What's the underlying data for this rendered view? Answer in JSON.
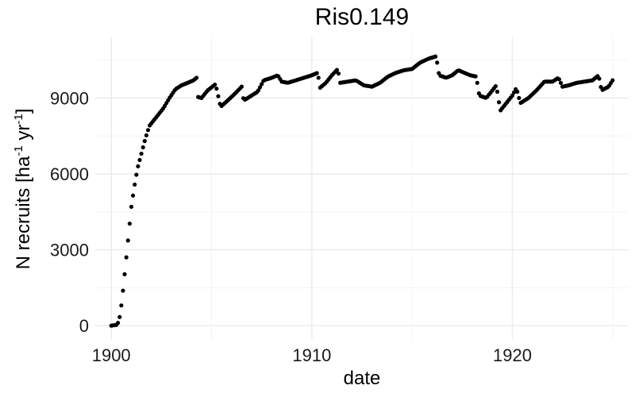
{
  "chart_data": {
    "type": "scatter",
    "title": "Ris0.149",
    "xlabel": "date",
    "ylabel": {
      "text": "N recruits [ha",
      "sup1": "-1",
      "mid": " yr",
      "sup2": "-1",
      "end": "]"
    },
    "xlim": [
      1899.2,
      1925.8
    ],
    "ylim": [
      -560,
      11400
    ],
    "x_ticks": [
      1900,
      1910,
      1920
    ],
    "x_tick_labels": [
      "1900",
      "1910",
      "1920"
    ],
    "y_ticks": [
      0,
      3000,
      6000,
      9000
    ],
    "y_tick_labels": [
      "0",
      "3000",
      "6000",
      "9000"
    ],
    "grid": true,
    "legend": "none",
    "marker_color": "#000000",
    "anchors": [
      [
        1900.0,
        0
      ],
      [
        1900.15,
        20
      ],
      [
        1900.3,
        40
      ],
      [
        1900.4,
        250
      ],
      [
        1900.5,
        800
      ],
      [
        1900.6,
        1500
      ],
      [
        1900.7,
        2300
      ],
      [
        1900.8,
        3100
      ],
      [
        1900.9,
        3900
      ],
      [
        1901.0,
        4700
      ],
      [
        1901.15,
        5500
      ],
      [
        1901.3,
        6200
      ],
      [
        1901.5,
        6800
      ],
      [
        1901.7,
        7400
      ],
      [
        1901.9,
        7900
      ],
      [
        1902.1,
        8100
      ],
      [
        1902.3,
        8300
      ],
      [
        1902.6,
        8600
      ],
      [
        1902.9,
        9000
      ],
      [
        1903.2,
        9350
      ],
      [
        1903.5,
        9500
      ],
      [
        1903.8,
        9600
      ],
      [
        1904.1,
        9700
      ],
      [
        1904.25,
        9800
      ],
      [
        1904.3,
        9050
      ],
      [
        1904.5,
        9000
      ],
      [
        1904.8,
        9300
      ],
      [
        1905.2,
        9550
      ],
      [
        1905.45,
        8650
      ],
      [
        1905.8,
        8900
      ],
      [
        1906.2,
        9200
      ],
      [
        1906.5,
        9450
      ],
      [
        1906.6,
        8900
      ],
      [
        1906.9,
        9050
      ],
      [
        1907.3,
        9250
      ],
      [
        1907.6,
        9700
      ],
      [
        1908.0,
        9800
      ],
      [
        1908.3,
        9900
      ],
      [
        1908.5,
        9650
      ],
      [
        1908.8,
        9600
      ],
      [
        1909.2,
        9700
      ],
      [
        1909.6,
        9800
      ],
      [
        1910.0,
        9900
      ],
      [
        1910.3,
        10000
      ],
      [
        1910.4,
        9400
      ],
      [
        1910.7,
        9600
      ],
      [
        1911.0,
        9900
      ],
      [
        1911.3,
        10150
      ],
      [
        1911.4,
        9600
      ],
      [
        1911.8,
        9650
      ],
      [
        1912.2,
        9700
      ],
      [
        1912.6,
        9500
      ],
      [
        1913.0,
        9450
      ],
      [
        1913.4,
        9600
      ],
      [
        1913.8,
        9850
      ],
      [
        1914.2,
        10000
      ],
      [
        1914.6,
        10100
      ],
      [
        1915.0,
        10150
      ],
      [
        1915.4,
        10400
      ],
      [
        1915.8,
        10550
      ],
      [
        1916.2,
        10650
      ],
      [
        1916.35,
        9900
      ],
      [
        1916.7,
        9800
      ],
      [
        1917.0,
        9900
      ],
      [
        1917.3,
        10100
      ],
      [
        1917.6,
        10000
      ],
      [
        1917.9,
        9900
      ],
      [
        1918.2,
        9850
      ],
      [
        1918.35,
        9100
      ],
      [
        1918.7,
        9000
      ],
      [
        1919.0,
        9300
      ],
      [
        1919.2,
        9500
      ],
      [
        1919.4,
        8500
      ],
      [
        1919.7,
        8800
      ],
      [
        1920.0,
        9100
      ],
      [
        1920.2,
        9400
      ],
      [
        1920.4,
        8800
      ],
      [
        1920.8,
        9000
      ],
      [
        1921.2,
        9300
      ],
      [
        1921.6,
        9650
      ],
      [
        1922.0,
        9650
      ],
      [
        1922.3,
        9800
      ],
      [
        1922.5,
        9450
      ],
      [
        1922.8,
        9500
      ],
      [
        1923.2,
        9600
      ],
      [
        1923.6,
        9650
      ],
      [
        1924.0,
        9700
      ],
      [
        1924.3,
        9900
      ],
      [
        1924.45,
        9300
      ],
      [
        1924.8,
        9450
      ],
      [
        1925.0,
        9700
      ]
    ]
  }
}
